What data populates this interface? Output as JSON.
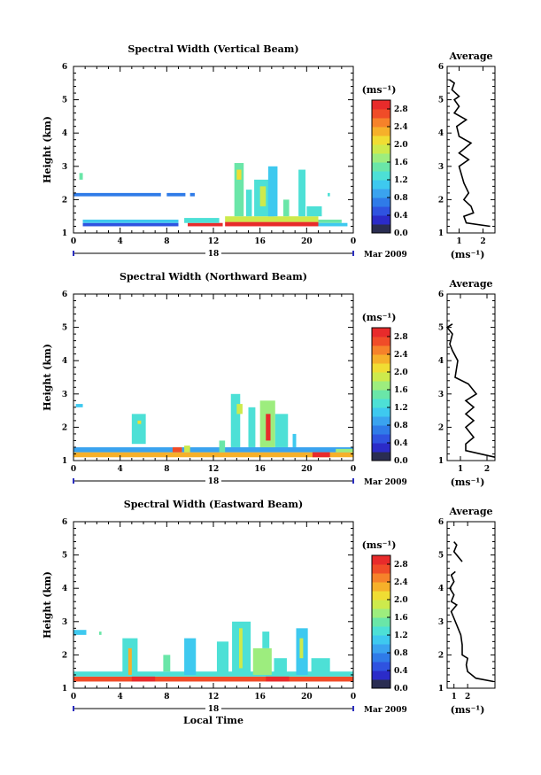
{
  "colors": [
    "#2a2d52",
    "#2b2bc8",
    "#2f53e0",
    "#2f7be8",
    "#3aa3ef",
    "#3ec9ef",
    "#4de0d6",
    "#6ae6a8",
    "#9ded7e",
    "#cdea4c",
    "#f0dd33",
    "#f6b02a",
    "#f6822a",
    "#f04c28",
    "#e82b2b"
  ],
  "chart_data": [
    {
      "type": "heatmap",
      "panel": "vertical",
      "title": "Spectral Width (Vertical Beam)",
      "ylabel": "Height (km)",
      "ylim": [
        1,
        6
      ],
      "yticks": [
        "1",
        "2",
        "3",
        "4",
        "5",
        "6"
      ],
      "xlim": [
        0,
        24
      ],
      "xticks": [
        "0",
        "4",
        "8",
        "12",
        "16",
        "20",
        "0"
      ],
      "date_label": "18",
      "month_label": "Mar 2009",
      "colorbar": {
        "title": "(ms⁻¹)",
        "range": [
          0,
          3.0
        ],
        "ticks": [
          "0.0",
          "0.4",
          "0.8",
          "1.2",
          "1.6",
          "2.0",
          "2.4",
          "2.8"
        ]
      },
      "cells": [
        [
          0,
          2.1,
          7.5,
          2.2,
          0.7
        ],
        [
          8,
          2.1,
          9.6,
          2.2,
          0.7
        ],
        [
          10,
          2.1,
          10.4,
          2.2,
          0.7
        ],
        [
          0.5,
          2.6,
          0.8,
          2.8,
          1.5
        ],
        [
          0.8,
          1.2,
          9,
          1.3,
          0.6
        ],
        [
          0.8,
          1.3,
          9,
          1.4,
          1.2
        ],
        [
          9.8,
          1.2,
          12.8,
          1.3,
          3.0
        ],
        [
          9.5,
          1.3,
          12.5,
          1.45,
          1.4
        ],
        [
          13,
          1.2,
          21,
          1.33,
          3.0
        ],
        [
          13,
          1.33,
          21,
          1.5,
          1.8
        ],
        [
          21,
          1.2,
          23.5,
          1.3,
          1.0
        ],
        [
          21,
          1.3,
          23,
          1.4,
          1.5
        ],
        [
          13.8,
          1.5,
          14.6,
          3.1,
          1.5
        ],
        [
          14,
          2.6,
          14.4,
          2.9,
          2.0
        ],
        [
          14.8,
          1.5,
          15.3,
          2.3,
          1.4
        ],
        [
          15.5,
          1.5,
          17.2,
          2.6,
          1.3
        ],
        [
          16,
          1.8,
          16.5,
          2.4,
          1.9
        ],
        [
          16.7,
          1.5,
          17.5,
          3.0,
          1.2
        ],
        [
          18,
          1.5,
          18.5,
          2.0,
          1.5
        ],
        [
          19.3,
          1.5,
          19.9,
          2.9,
          1.4
        ],
        [
          20,
          1.5,
          21.3,
          1.8,
          1.4
        ],
        [
          21.8,
          2.1,
          22,
          2.2,
          1.3
        ]
      ],
      "average": {
        "title": "Average",
        "xlabel": "(ms⁻¹)",
        "xlim": [
          0.5,
          2.5
        ],
        "xticks": [
          "1",
          "2"
        ],
        "yticks": [
          "1",
          "2",
          "3",
          "4",
          "5",
          "6"
        ],
        "profile": [
          [
            2.3,
            1.2
          ],
          [
            1.3,
            1.3
          ],
          [
            1.2,
            1.5
          ],
          [
            1.6,
            1.6
          ],
          [
            1.5,
            1.8
          ],
          [
            1.2,
            2.0
          ],
          [
            1.4,
            2.2
          ],
          [
            1.2,
            2.5
          ],
          [
            1.0,
            3.0
          ],
          [
            1.4,
            3.2
          ],
          [
            1.0,
            3.4
          ],
          [
            1.5,
            3.7
          ],
          [
            1.0,
            3.9
          ],
          [
            0.9,
            4.2
          ],
          [
            1.3,
            4.4
          ],
          [
            0.8,
            4.6
          ],
          [
            1.0,
            4.8
          ],
          [
            0.8,
            5.0
          ],
          [
            1.0,
            5.1
          ],
          [
            0.7,
            5.3
          ],
          [
            0.8,
            5.5
          ],
          [
            0.6,
            5.6
          ]
        ]
      }
    },
    {
      "type": "heatmap",
      "panel": "northward",
      "title": "Spectral Width (Northward Beam)",
      "ylabel": "Height (km)",
      "ylim": [
        1,
        6
      ],
      "yticks": [
        "1",
        "2",
        "3",
        "4",
        "5",
        "6"
      ],
      "xlim": [
        0,
        24
      ],
      "xticks": [
        "0",
        "4",
        "8",
        "12",
        "16",
        "20",
        "0"
      ],
      "date_label": "18",
      "month_label": "Mar 2009",
      "colorbar": {
        "title": "(ms⁻¹)",
        "range": [
          0,
          3.0
        ],
        "ticks": [
          "0.0",
          "0.4",
          "0.8",
          "1.2",
          "1.6",
          "2.0",
          "2.4",
          "2.8"
        ]
      },
      "cells": [
        [
          0,
          1.1,
          24,
          1.25,
          2.3
        ],
        [
          0,
          1.25,
          24,
          1.4,
          0.8
        ],
        [
          0.2,
          2.6,
          0.8,
          2.7,
          1.0
        ],
        [
          5,
          1.5,
          6.2,
          2.4,
          1.3
        ],
        [
          5.5,
          2.1,
          5.8,
          2.2,
          2.1
        ],
        [
          8.5,
          1.25,
          9.3,
          1.4,
          2.6
        ],
        [
          9.5,
          1.25,
          10,
          1.45,
          1.8
        ],
        [
          12.5,
          1.25,
          13,
          1.6,
          1.5
        ],
        [
          13.5,
          1.4,
          14.3,
          3.0,
          1.4
        ],
        [
          14,
          2.4,
          14.5,
          2.7,
          1.8
        ],
        [
          15,
          1.4,
          15.6,
          2.6,
          1.4
        ],
        [
          16,
          1.4,
          17.3,
          2.8,
          1.7
        ],
        [
          16.5,
          1.6,
          16.9,
          2.4,
          2.9
        ],
        [
          17.3,
          1.4,
          18.4,
          2.4,
          1.3
        ],
        [
          18.8,
          1.4,
          19.1,
          1.8,
          1.2
        ],
        [
          20.5,
          1.1,
          22,
          1.25,
          3.0
        ],
        [
          22.5,
          1.25,
          24,
          1.35,
          1.6
        ]
      ],
      "average": {
        "title": "Average",
        "xlabel": "(ms⁻¹)",
        "xlim": [
          0.5,
          2.3
        ],
        "xticks": [
          "1",
          "2"
        ],
        "yticks": [
          "1",
          "2",
          "3",
          "4",
          "5",
          "6"
        ],
        "profile": [
          [
            2.3,
            1.1
          ],
          [
            1.2,
            1.3
          ],
          [
            1.2,
            1.5
          ],
          [
            1.5,
            1.7
          ],
          [
            1.2,
            2.0
          ],
          [
            1.5,
            2.2
          ],
          [
            1.2,
            2.4
          ],
          [
            1.5,
            2.6
          ],
          [
            1.2,
            2.8
          ],
          [
            1.6,
            3.0
          ],
          [
            1.3,
            3.3
          ],
          [
            0.8,
            3.5
          ],
          [
            0.9,
            4.0
          ],
          [
            0.7,
            4.3
          ],
          [
            0.6,
            4.5
          ],
          [
            0.7,
            4.8
          ],
          [
            0.5,
            5.0
          ],
          [
            0.7,
            5.1
          ]
        ]
      }
    },
    {
      "type": "heatmap",
      "panel": "eastward",
      "title": "Spectral Width (Eastward Beam)",
      "ylabel": "Height (km)",
      "ylim": [
        1,
        6
      ],
      "yticks": [
        "1",
        "2",
        "3",
        "4",
        "5",
        "6"
      ],
      "xlim": [
        0,
        24
      ],
      "xticks": [
        "0",
        "4",
        "8",
        "12",
        "16",
        "20",
        "0"
      ],
      "date_label": "18",
      "month_label": "Mar 2009",
      "xlabel": "Local Time",
      "colorbar": {
        "title": "(ms⁻¹)",
        "range": [
          0,
          3.0
        ],
        "ticks": [
          "0.0",
          "0.4",
          "0.8",
          "1.2",
          "1.6",
          "2.0",
          "2.4",
          "2.8"
        ]
      },
      "cells": [
        [
          0,
          1.2,
          24,
          1.35,
          2.8
        ],
        [
          0,
          1.35,
          24,
          1.5,
          1.3
        ],
        [
          0,
          2.6,
          1.1,
          2.75,
          1.0
        ],
        [
          2.2,
          2.6,
          2.4,
          2.7,
          1.5
        ],
        [
          4.2,
          1.4,
          5.5,
          2.5,
          1.3
        ],
        [
          4.7,
          1.4,
          5,
          2.2,
          2.2
        ],
        [
          7.7,
          1.5,
          8.3,
          2.0,
          1.5
        ],
        [
          9.5,
          1.4,
          10.5,
          2.5,
          1.2
        ],
        [
          12.3,
          1.4,
          13.3,
          2.4,
          1.3
        ],
        [
          13.6,
          1.4,
          15.2,
          3.0,
          1.3
        ],
        [
          14.2,
          1.6,
          14.5,
          2.8,
          1.9
        ],
        [
          15.4,
          1.4,
          17,
          2.2,
          1.6
        ],
        [
          16.2,
          2.2,
          16.8,
          2.7,
          1.3
        ],
        [
          17.2,
          1.4,
          18.3,
          1.9,
          1.4
        ],
        [
          19.1,
          1.4,
          20.1,
          2.8,
          1.2
        ],
        [
          19.4,
          1.9,
          19.7,
          2.5,
          1.9
        ],
        [
          20.4,
          1.4,
          22,
          1.9,
          1.4
        ],
        [
          16.5,
          1.2,
          18.5,
          1.35,
          3.0
        ],
        [
          5,
          1.2,
          7,
          1.35,
          3.0
        ]
      ],
      "average": {
        "title": "Average",
        "xlabel": "(ms⁻¹)",
        "xlim": [
          0.5,
          4.0
        ],
        "xticks": [
          "1",
          "2"
        ],
        "yticks": [
          "1",
          "2",
          "3",
          "4",
          "5",
          "6"
        ],
        "profile": [
          [
            3.9,
            1.2
          ],
          [
            2.6,
            1.3
          ],
          [
            2.0,
            1.5
          ],
          [
            1.9,
            1.7
          ],
          [
            2.0,
            1.9
          ],
          [
            1.6,
            2.0
          ],
          [
            1.6,
            2.3
          ],
          [
            1.5,
            2.6
          ],
          [
            1.2,
            2.9
          ],
          [
            1.0,
            3.1
          ],
          [
            0.8,
            3.3
          ],
          [
            1.2,
            3.5
          ],
          [
            0.8,
            3.6
          ],
          [
            1.0,
            3.8
          ],
          [
            0.7,
            4.0
          ],
          [
            1.0,
            4.2
          ],
          [
            0.8,
            4.4
          ],
          [
            1.1,
            4.5
          ],
          [
            null,
            4.7
          ],
          [
            1.6,
            4.8
          ],
          [
            1.0,
            5.1
          ],
          [
            1.2,
            5.3
          ],
          [
            1.0,
            5.4
          ]
        ]
      }
    }
  ]
}
